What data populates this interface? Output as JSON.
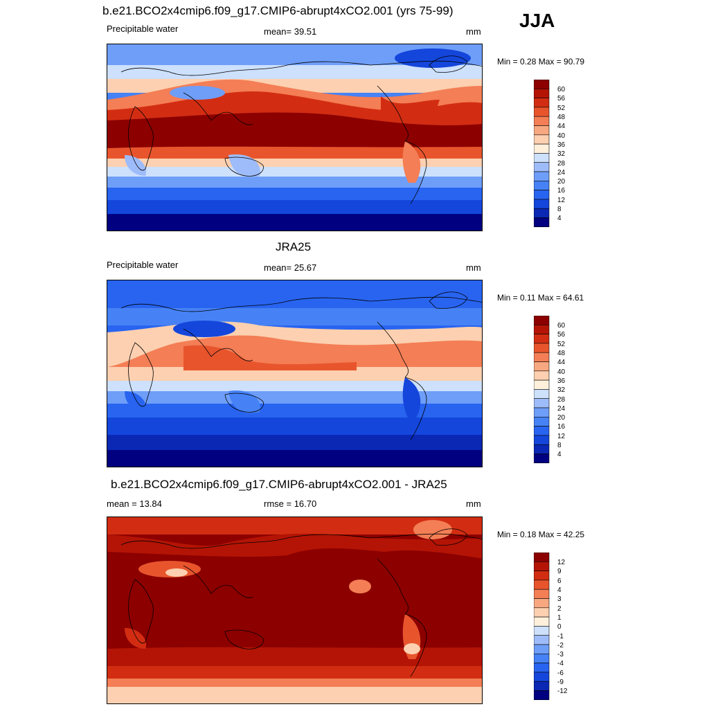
{
  "season": "JJA",
  "panels": [
    {
      "title": "b.e21.BCO2x4cmip6.f09_g17.CMIP6-abrupt4xCO2.001 (yrs 75-99)",
      "left": "Precipitable water",
      "center": "mean=  39.51",
      "units": "mm",
      "minmax": "Min =   0.28 Max =  90.79",
      "labelbar": [
        "60",
        "56",
        "52",
        "48",
        "44",
        "40",
        "36",
        "32",
        "28",
        "24",
        "20",
        "16",
        "12",
        "8",
        "4"
      ]
    },
    {
      "title": "JRA25",
      "left": "Precipitable water",
      "center": "mean=  25.67",
      "units": "mm",
      "minmax": "Min =   0.11 Max =  64.61",
      "labelbar": [
        "60",
        "56",
        "52",
        "48",
        "44",
        "40",
        "36",
        "32",
        "28",
        "24",
        "20",
        "16",
        "12",
        "8",
        "4"
      ]
    },
    {
      "title": "b.e21.BCO2x4cmip6.f09_g17.CMIP6-abrupt4xCO2.001 - JRA25",
      "left": "mean =  13.84",
      "center": "rmse =  16.70",
      "units": "mm",
      "minmax": "Min =   0.18 Max =  42.25",
      "labelbar": [
        "12",
        "9",
        "6",
        "4",
        "3",
        "2",
        "1",
        "0",
        "-1",
        "-2",
        "-3",
        "-4",
        "-6",
        "-9",
        "-12"
      ]
    }
  ],
  "colors": {
    "scale": [
      "#000080",
      "#0a28b4",
      "#1446dc",
      "#2864f0",
      "#4682f5",
      "#6e9ef8",
      "#9ebcfa",
      "#cde0fc",
      "#fff0dc",
      "#fcd0b0",
      "#f8a880",
      "#f47e55",
      "#e8552d",
      "#d22d12",
      "#b41405",
      "#8c0000"
    ]
  }
}
